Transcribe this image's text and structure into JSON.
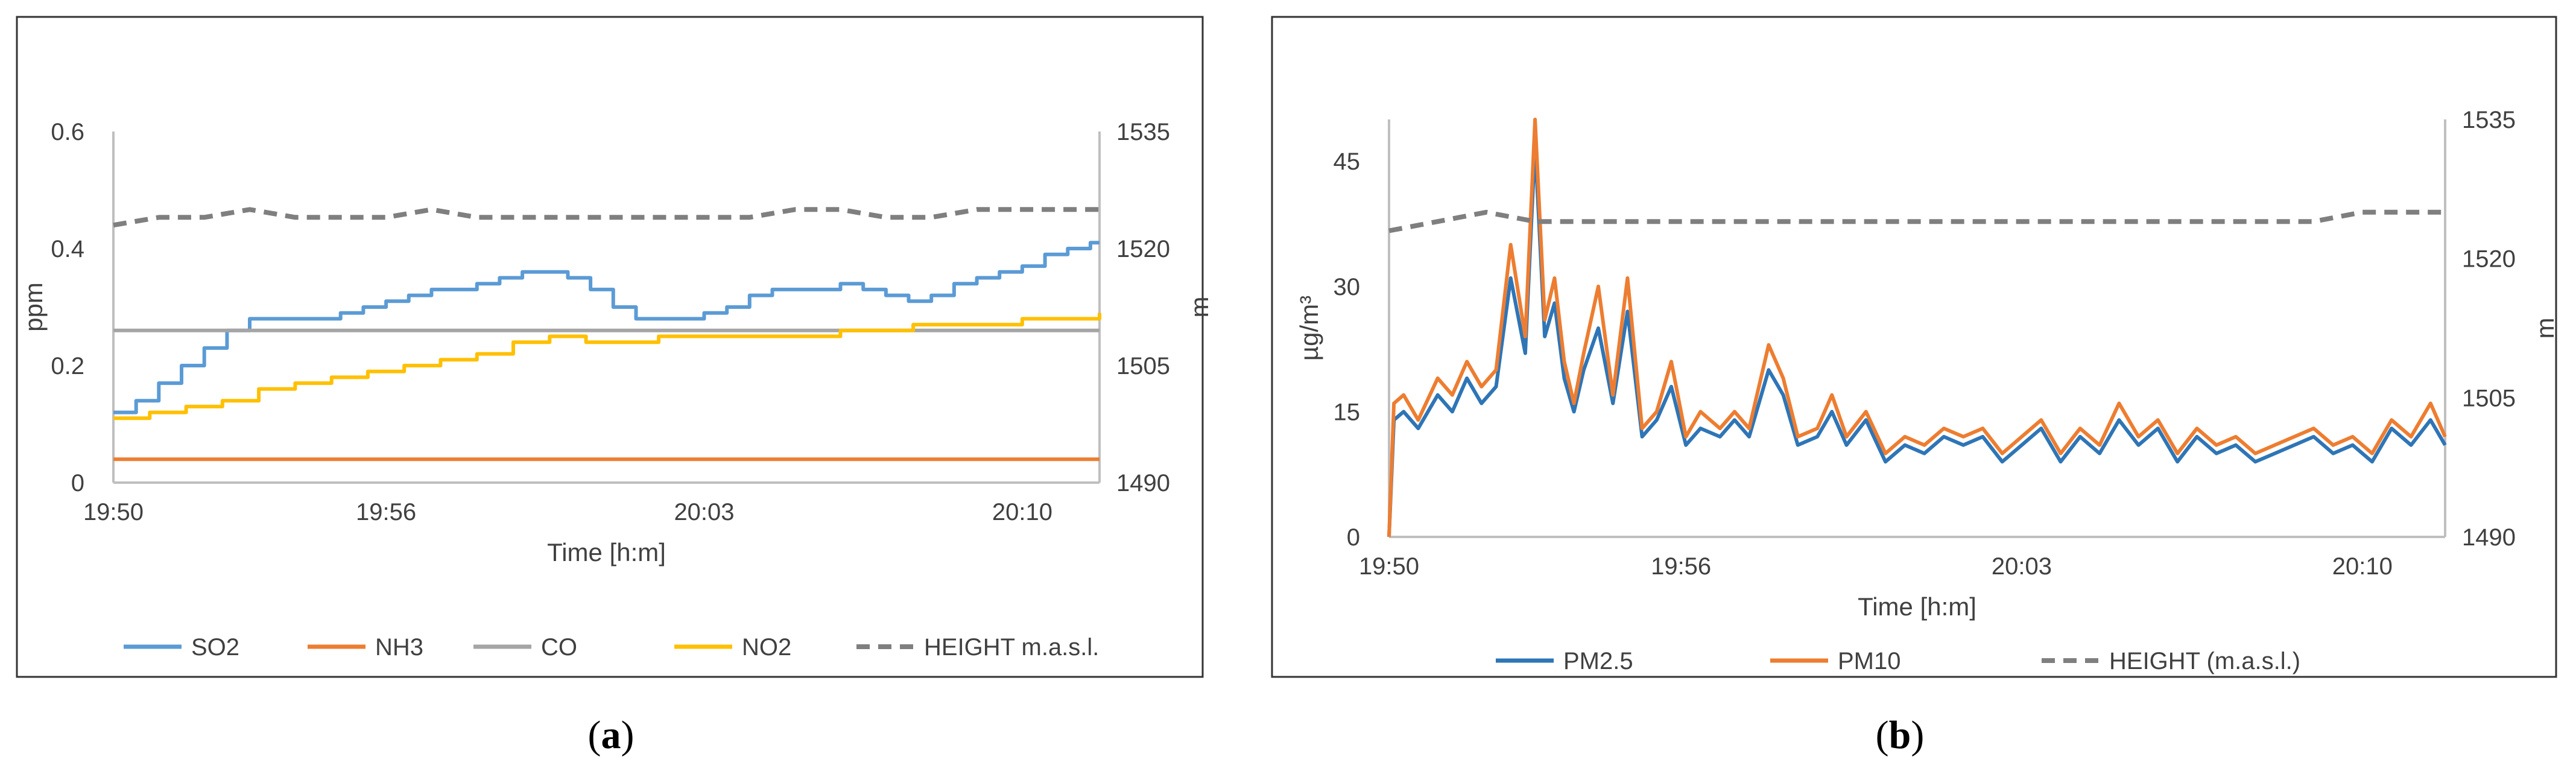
{
  "chart_data": [
    {
      "id": "a",
      "type": "line",
      "caption": "(a)",
      "caption_letter": "a",
      "x_ticks": [
        "19:50",
        "19:56",
        "20:03",
        "20:10"
      ],
      "x_range_minutes": [
        0,
        21.7
      ],
      "tick_minutes": [
        0,
        6,
        13,
        20
      ],
      "xlabel": "Time [h:m]",
      "ylabel": "ppm",
      "ylim": [
        0,
        0.6
      ],
      "y_ticks": [
        "0",
        "0.2",
        "0.4",
        "0.6"
      ],
      "y_tick_values": [
        0,
        0.2,
        0.4,
        0.6
      ],
      "y2label": "m",
      "y2lim": [
        1490,
        1535
      ],
      "y2_ticks": [
        "1490",
        "1505",
        "1520",
        "1535"
      ],
      "y2_tick_values": [
        1490,
        1505,
        1520,
        1535
      ],
      "series": [
        {
          "name": "SO2",
          "color": "#5b9bd5",
          "style": "step",
          "axis": "left",
          "x": [
            0,
            0.5,
            1,
            1.5,
            2,
            2.5,
            3,
            3.5,
            4,
            4.5,
            5,
            5.5,
            6,
            6.5,
            7,
            7.5,
            8,
            8.5,
            9,
            9.5,
            10,
            10.5,
            11,
            11.5,
            12,
            12.5,
            13,
            13.5,
            14,
            14.5,
            15,
            15.5,
            16,
            16.5,
            17,
            17.5,
            18,
            18.5,
            19,
            19.5,
            20,
            20.5,
            21,
            21.5,
            21.7
          ],
          "values": [
            0.12,
            0.14,
            0.17,
            0.2,
            0.23,
            0.26,
            0.28,
            0.28,
            0.28,
            0.28,
            0.29,
            0.3,
            0.31,
            0.32,
            0.33,
            0.33,
            0.34,
            0.35,
            0.36,
            0.36,
            0.35,
            0.33,
            0.3,
            0.28,
            0.28,
            0.28,
            0.29,
            0.3,
            0.32,
            0.33,
            0.33,
            0.33,
            0.34,
            0.33,
            0.32,
            0.31,
            0.32,
            0.34,
            0.35,
            0.36,
            0.37,
            0.39,
            0.4,
            0.41,
            0.41
          ]
        },
        {
          "name": "NH3",
          "color": "#ed7d31",
          "style": "line",
          "axis": "left",
          "x": [
            0,
            21.7
          ],
          "values": [
            0.04,
            0.04
          ]
        },
        {
          "name": "CO",
          "color": "#a5a5a5",
          "style": "line",
          "axis": "left",
          "x": [
            0,
            21.7
          ],
          "values": [
            0.26,
            0.26
          ]
        },
        {
          "name": "NO2",
          "color": "#ffc000",
          "style": "step",
          "axis": "left",
          "x": [
            0,
            0.8,
            1.6,
            2.4,
            3.2,
            4,
            4.8,
            5.6,
            6.4,
            7.2,
            8,
            8.8,
            9.6,
            10.4,
            11.2,
            12,
            12.8,
            13.6,
            14.4,
            15.2,
            16,
            16.8,
            17.6,
            18.4,
            19.2,
            20,
            20.8,
            21.7
          ],
          "values": [
            0.11,
            0.12,
            0.13,
            0.14,
            0.16,
            0.17,
            0.18,
            0.19,
            0.2,
            0.21,
            0.22,
            0.24,
            0.25,
            0.24,
            0.24,
            0.25,
            0.25,
            0.25,
            0.25,
            0.25,
            0.26,
            0.26,
            0.27,
            0.27,
            0.27,
            0.28,
            0.28,
            0.29
          ]
        },
        {
          "name": "HEIGHT m.a.s.l.",
          "color": "#7f7f7f",
          "style": "dashed",
          "axis": "right",
          "x": [
            0,
            1,
            2,
            3,
            4,
            5,
            6,
            7,
            8,
            9,
            10,
            11,
            12,
            13,
            14,
            15,
            16,
            17,
            18,
            19,
            20,
            21,
            21.7
          ],
          "values": [
            1523,
            1524,
            1524,
            1525,
            1524,
            1524,
            1524,
            1525,
            1524,
            1524,
            1524,
            1524,
            1524,
            1524,
            1524,
            1525,
            1525,
            1524,
            1524,
            1525,
            1525,
            1525,
            1525
          ]
        }
      ]
    },
    {
      "id": "b",
      "type": "line",
      "caption": "(b)",
      "caption_letter": "b",
      "x_ticks": [
        "19:50",
        "19:56",
        "20:03",
        "20:10"
      ],
      "x_range_minutes": [
        0,
        21.7
      ],
      "tick_minutes": [
        0,
        6,
        13,
        20
      ],
      "xlabel": "Time [h:m]",
      "ylabel": "µg/m³",
      "ylim": [
        0,
        50
      ],
      "y_ticks": [
        "0",
        "15",
        "30",
        "45"
      ],
      "y_tick_values": [
        0,
        15,
        30,
        45
      ],
      "y2label": "m",
      "y2lim": [
        1490,
        1535
      ],
      "y2_ticks": [
        "1490",
        "1505",
        "1520",
        "1535"
      ],
      "y2_tick_values": [
        1490,
        1505,
        1520,
        1535
      ],
      "series": [
        {
          "name": "PM2.5",
          "color": "#2e75b6",
          "style": "line",
          "axis": "left",
          "x": [
            0,
            0.1,
            0.3,
            0.6,
            1.0,
            1.3,
            1.6,
            1.9,
            2.2,
            2.5,
            2.8,
            3.0,
            3.2,
            3.4,
            3.6,
            3.8,
            4.0,
            4.3,
            4.6,
            4.9,
            5.2,
            5.5,
            5.8,
            6.1,
            6.4,
            6.8,
            7.1,
            7.4,
            7.8,
            8.1,
            8.4,
            8.8,
            9.1,
            9.4,
            9.8,
            10.2,
            10.6,
            11.0,
            11.4,
            11.8,
            12.2,
            12.6,
            13.0,
            13.4,
            13.8,
            14.2,
            14.6,
            15.0,
            15.4,
            15.8,
            16.2,
            16.6,
            17.0,
            17.4,
            17.8,
            18.2,
            18.6,
            19.0,
            19.4,
            19.8,
            20.2,
            20.6,
            21.0,
            21.4,
            21.7
          ],
          "values": [
            0,
            14,
            15,
            13,
            17,
            15,
            19,
            16,
            18,
            31,
            22,
            47,
            24,
            28,
            19,
            15,
            20,
            25,
            16,
            27,
            12,
            14,
            18,
            11,
            13,
            12,
            14,
            12,
            20,
            17,
            11,
            12,
            15,
            11,
            14,
            9,
            11,
            10,
            12,
            11,
            12,
            9,
            11,
            13,
            9,
            12,
            10,
            14,
            11,
            13,
            9,
            12,
            10,
            11,
            9,
            10,
            11,
            12,
            10,
            11,
            9,
            13,
            11,
            14,
            11
          ]
        },
        {
          "name": "PM10",
          "color": "#ed7d31",
          "style": "line",
          "axis": "left",
          "x": [
            0,
            0.1,
            0.3,
            0.6,
            1.0,
            1.3,
            1.6,
            1.9,
            2.2,
            2.5,
            2.8,
            3.0,
            3.2,
            3.4,
            3.6,
            3.8,
            4.0,
            4.3,
            4.6,
            4.9,
            5.2,
            5.5,
            5.8,
            6.1,
            6.4,
            6.8,
            7.1,
            7.4,
            7.8,
            8.1,
            8.4,
            8.8,
            9.1,
            9.4,
            9.8,
            10.2,
            10.6,
            11.0,
            11.4,
            11.8,
            12.2,
            12.6,
            13.0,
            13.4,
            13.8,
            14.2,
            14.6,
            15.0,
            15.4,
            15.8,
            16.2,
            16.6,
            17.0,
            17.4,
            17.8,
            18.2,
            18.6,
            19.0,
            19.4,
            19.8,
            20.2,
            20.6,
            21.0,
            21.4,
            21.7
          ],
          "values": [
            0,
            16,
            17,
            14,
            19,
            17,
            21,
            18,
            20,
            35,
            24,
            50,
            26,
            31,
            21,
            16,
            22,
            30,
            17,
            31,
            13,
            15,
            21,
            12,
            15,
            13,
            15,
            13,
            23,
            19,
            12,
            13,
            17,
            12,
            15,
            10,
            12,
            11,
            13,
            12,
            13,
            10,
            12,
            14,
            10,
            13,
            11,
            16,
            12,
            14,
            10,
            13,
            11,
            12,
            10,
            11,
            12,
            13,
            11,
            12,
            10,
            14,
            12,
            16,
            12
          ]
        },
        {
          "name": "HEIGHT (m.a.s.l.)",
          "color": "#7f7f7f",
          "style": "dashed",
          "axis": "right",
          "x": [
            0,
            1,
            2,
            3,
            4,
            5,
            6,
            7,
            8,
            9,
            10,
            11,
            12,
            13,
            14,
            15,
            16,
            17,
            18,
            19,
            20,
            21,
            21.7
          ],
          "values": [
            1523,
            1524,
            1525,
            1524,
            1524,
            1524,
            1524,
            1524,
            1524,
            1524,
            1524,
            1524,
            1524,
            1524,
            1524,
            1524,
            1524,
            1524,
            1524,
            1524,
            1525,
            1525,
            1525
          ]
        }
      ]
    }
  ]
}
